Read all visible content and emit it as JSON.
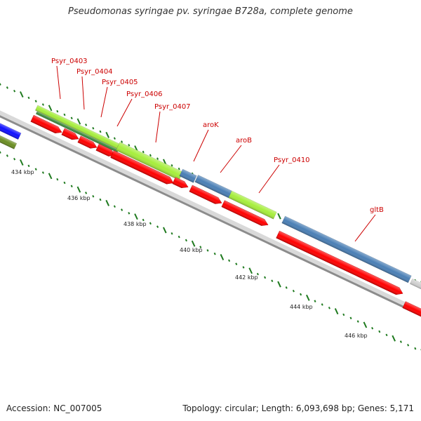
{
  "title": "Pseudomonas syringae pv. syringae B728a, complete genome",
  "footer": {
    "accession": "Accession: NC_007005",
    "topology": "Topology: circular; Length: 6,093,698 bp; Genes: 5,171"
  },
  "colors": {
    "cds": "#ff0000",
    "gene_green": "#a6ee3c",
    "gene_blue": "#4a7fb5",
    "label": "#cc0000",
    "tick": "#1f7a1f",
    "backbone": "#8c8c8c"
  },
  "kbp_ticks": [
    "434 kbp",
    "436 kbp",
    "438 kbp",
    "440 kbp",
    "442 kbp",
    "444 kbp",
    "446 kbp"
  ],
  "gene_labels": [
    "Psyr_0403",
    "Psyr_0404",
    "Psyr_0405",
    "Psyr_0406",
    "Psyr_0407",
    "aroK",
    "aroB",
    "Psyr_0410",
    "gltB"
  ]
}
